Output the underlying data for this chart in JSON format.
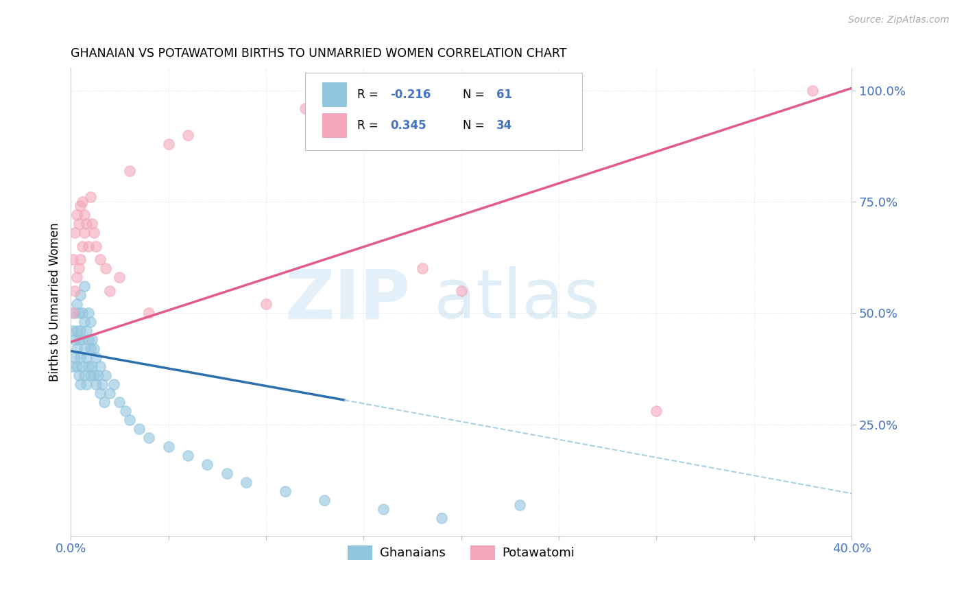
{
  "title": "GHANAIAN VS POTAWATOMI BIRTHS TO UNMARRIED WOMEN CORRELATION CHART",
  "source": "Source: ZipAtlas.com",
  "ylabel_label": "Births to Unmarried Women",
  "blue_color": "#92c5de",
  "pink_color": "#f4a7bb",
  "blue_line_color": "#2c6fad",
  "pink_line_color": "#e05a8a",
  "blue_dash_color": "#92c5de",
  "tick_color": "#4472C4",
  "grid_color": "#e0e0e0",
  "blue_r": "-0.216",
  "blue_n": "61",
  "pink_r": "0.345",
  "pink_n": "34",
  "xlim": [
    0.0,
    0.4
  ],
  "ylim": [
    0.0,
    1.05
  ],
  "blue_x": [
    0.001,
    0.001,
    0.002,
    0.002,
    0.002,
    0.003,
    0.003,
    0.003,
    0.003,
    0.004,
    0.004,
    0.004,
    0.005,
    0.005,
    0.005,
    0.005,
    0.006,
    0.006,
    0.006,
    0.007,
    0.007,
    0.007,
    0.007,
    0.008,
    0.008,
    0.008,
    0.009,
    0.009,
    0.009,
    0.01,
    0.01,
    0.01,
    0.011,
    0.011,
    0.012,
    0.012,
    0.013,
    0.013,
    0.014,
    0.015,
    0.015,
    0.016,
    0.017,
    0.018,
    0.02,
    0.022,
    0.025,
    0.028,
    0.03,
    0.035,
    0.04,
    0.05,
    0.06,
    0.07,
    0.08,
    0.09,
    0.11,
    0.13,
    0.16,
    0.19,
    0.23
  ],
  "blue_y": [
    0.38,
    0.46,
    0.4,
    0.44,
    0.5,
    0.38,
    0.42,
    0.46,
    0.52,
    0.36,
    0.44,
    0.5,
    0.34,
    0.4,
    0.46,
    0.54,
    0.38,
    0.44,
    0.5,
    0.36,
    0.42,
    0.48,
    0.56,
    0.34,
    0.4,
    0.46,
    0.38,
    0.44,
    0.5,
    0.36,
    0.42,
    0.48,
    0.38,
    0.44,
    0.36,
    0.42,
    0.34,
    0.4,
    0.36,
    0.38,
    0.32,
    0.34,
    0.3,
    0.36,
    0.32,
    0.34,
    0.3,
    0.28,
    0.26,
    0.24,
    0.22,
    0.2,
    0.18,
    0.16,
    0.14,
    0.12,
    0.1,
    0.08,
    0.06,
    0.04,
    0.07
  ],
  "pink_x": [
    0.001,
    0.001,
    0.002,
    0.002,
    0.003,
    0.003,
    0.004,
    0.004,
    0.005,
    0.005,
    0.006,
    0.006,
    0.007,
    0.007,
    0.008,
    0.009,
    0.01,
    0.011,
    0.012,
    0.013,
    0.015,
    0.018,
    0.02,
    0.025,
    0.03,
    0.04,
    0.05,
    0.06,
    0.1,
    0.12,
    0.18,
    0.2,
    0.3,
    0.38
  ],
  "pink_y": [
    0.5,
    0.62,
    0.55,
    0.68,
    0.58,
    0.72,
    0.6,
    0.7,
    0.62,
    0.74,
    0.65,
    0.75,
    0.68,
    0.72,
    0.7,
    0.65,
    0.76,
    0.7,
    0.68,
    0.65,
    0.62,
    0.6,
    0.55,
    0.58,
    0.82,
    0.5,
    0.88,
    0.9,
    0.52,
    0.96,
    0.6,
    0.55,
    0.28,
    1.0
  ],
  "blue_line_x0": 0.0,
  "blue_line_x_solid_end": 0.14,
  "blue_line_x_dash_end": 0.4,
  "blue_line_y0": 0.415,
  "blue_line_y_solid_end": 0.305,
  "blue_line_y_dash_end": 0.095,
  "pink_line_x0": 0.0,
  "pink_line_x1": 0.4,
  "pink_line_y0": 0.435,
  "pink_line_y1": 1.005
}
